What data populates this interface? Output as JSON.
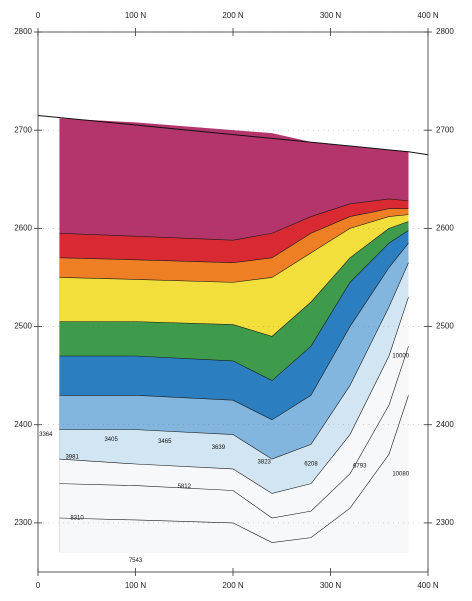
{
  "chart_data": {
    "type": "contour",
    "xlim": [
      0,
      400
    ],
    "ylim": [
      2250,
      2800
    ],
    "xticks": [
      0,
      {
        "value": 100,
        "label": "100 N"
      },
      {
        "value": 200,
        "label": "200 N"
      },
      {
        "value": 300,
        "label": "300 N"
      },
      {
        "value": 400,
        "label": "400 N"
      }
    ],
    "yticks": [
      2300,
      2400,
      2500,
      2600,
      2700,
      2800
    ],
    "grid": true,
    "surface": {
      "x": [
        0,
        380,
        400
      ],
      "y": [
        2715,
        2678,
        2675
      ]
    },
    "xs": [
      22,
      100,
      200,
      240,
      280,
      320,
      360,
      380
    ],
    "section_top": [
      2712,
      2708,
      2700,
      2697,
      2688,
      2684,
      2680,
      2678
    ],
    "section_bottom": 2270,
    "band_colors": [
      "#b4356c",
      "#d92a33",
      "#ee7f25",
      "#f2df3c",
      "#3f9b4c",
      "#2b7fc0",
      "#82b6de",
      "#d2e5f2",
      "#f6f8fa"
    ],
    "boundaries": [
      [
        2595,
        2592,
        2588,
        2595,
        2612,
        2625,
        2630,
        2628
      ],
      [
        2570,
        2568,
        2565,
        2570,
        2595,
        2612,
        2620,
        2620
      ],
      [
        2550,
        2548,
        2545,
        2550,
        2575,
        2600,
        2612,
        2614
      ],
      [
        2505,
        2505,
        2502,
        2490,
        2525,
        2570,
        2600,
        2607
      ],
      [
        2470,
        2470,
        2465,
        2445,
        2480,
        2545,
        2585,
        2598
      ],
      [
        2430,
        2430,
        2425,
        2405,
        2430,
        2500,
        2560,
        2585
      ],
      [
        2395,
        2395,
        2390,
        2365,
        2380,
        2440,
        2520,
        2565
      ],
      [
        2365,
        2360,
        2355,
        2330,
        2340,
        2390,
        2470,
        2530
      ],
      [
        2340,
        2338,
        2333,
        2305,
        2312,
        2350,
        2420,
        2480
      ],
      [
        2305,
        2303,
        2300,
        2280,
        2285,
        2315,
        2370,
        2430
      ]
    ],
    "contour_labels": [
      {
        "x": 8,
        "y": 2390,
        "value": 3364
      },
      {
        "x": 35,
        "y": 2367,
        "value": 3981
      },
      {
        "x": 75,
        "y": 2385,
        "value": 3405
      },
      {
        "x": 130,
        "y": 2383,
        "value": 3465
      },
      {
        "x": 185,
        "y": 2377,
        "value": 3639
      },
      {
        "x": 232,
        "y": 2362,
        "value": 3823
      },
      {
        "x": 150,
        "y": 2337,
        "value": 5812
      },
      {
        "x": 280,
        "y": 2360,
        "value": 6208
      },
      {
        "x": 330,
        "y": 2358,
        "value": 6793
      },
      {
        "x": 40,
        "y": 2305,
        "value": 8310
      },
      {
        "x": 100,
        "y": 2262,
        "value": 7543
      },
      {
        "x": 372,
        "y": 2470,
        "value": 10000
      },
      {
        "x": 372,
        "y": 2350,
        "value": 10080
      }
    ]
  }
}
